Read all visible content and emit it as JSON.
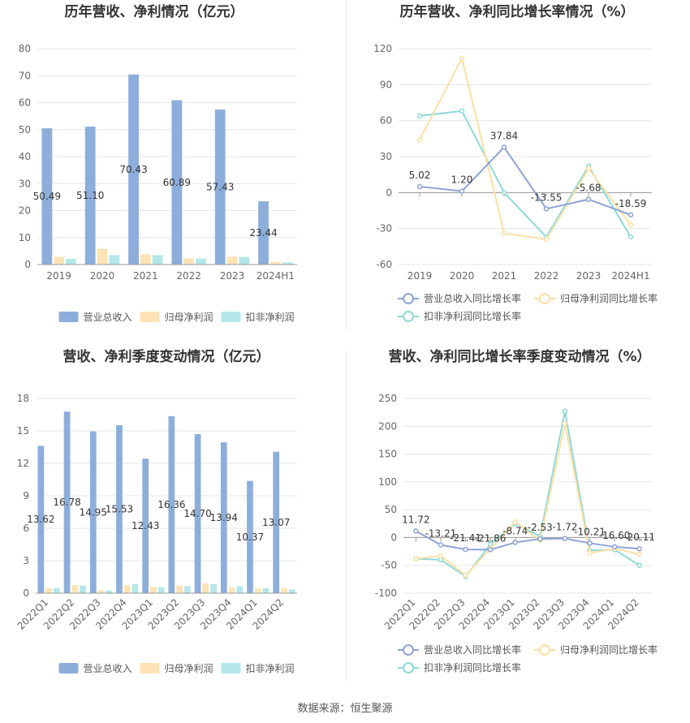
{
  "source": "数据来源：恒生聚源",
  "colors": {
    "revenue": "#8DAEDB",
    "net_profit": "#FDE3B6",
    "deducted_profit": "#B4E7EA",
    "revenue_line": "#8DA3D6",
    "net_profit_line": "#FDDFA4",
    "deducted_line": "#8ED9D8"
  },
  "chart_data": [
    {
      "type": "bar",
      "title": "历年营收、净利情况（亿元）",
      "categories": [
        "2019",
        "2020",
        "2021",
        "2022",
        "2023",
        "2024H1"
      ],
      "ylim": [
        0,
        80
      ],
      "yticks": [
        0,
        10,
        20,
        30,
        40,
        50,
        60,
        70,
        80
      ],
      "legend_position": "bottom",
      "series": [
        {
          "name": "营业总收入",
          "values": [
            50.49,
            51.1,
            70.43,
            60.89,
            57.43,
            23.44
          ],
          "labels": [
            "50.49",
            "51.10",
            "70.43",
            "60.89",
            "57.43",
            "23.44"
          ]
        },
        {
          "name": "归母净利润",
          "values": [
            2.8,
            5.8,
            3.8,
            2.3,
            2.9,
            1.0
          ]
        },
        {
          "name": "扣非净利润",
          "values": [
            2.1,
            3.5,
            3.5,
            2.2,
            2.8,
            0.8
          ]
        }
      ]
    },
    {
      "type": "line",
      "title": "历年营收、净利同比增长率情况（%）",
      "categories": [
        "2019",
        "2020",
        "2021",
        "2022",
        "2023",
        "2024H1"
      ],
      "ylim": [
        -60,
        120
      ],
      "yticks": [
        -60,
        -30,
        0,
        30,
        60,
        90,
        120
      ],
      "legend_position": "bottom",
      "series": [
        {
          "name": "营业总收入同比增长率",
          "values": [
            5.02,
            1.2,
            37.84,
            -13.55,
            -5.68,
            -18.59
          ],
          "labels": [
            "5.02",
            "1.20",
            "37.84",
            "-13.55",
            "-5.68",
            "-18.59"
          ]
        },
        {
          "name": "归母净利润同比增长率",
          "values": [
            44,
            112,
            -34,
            -39,
            20,
            -27
          ]
        },
        {
          "name": "扣非净利润同比增长率",
          "values": [
            64,
            68,
            0,
            -37,
            22,
            -37
          ]
        }
      ]
    },
    {
      "type": "bar",
      "title": "营收、净利季度变动情况（亿元）",
      "categories": [
        "2022Q1",
        "2022Q2",
        "2022Q3",
        "2022Q4",
        "2023Q1",
        "2023Q2",
        "2023Q3",
        "2023Q4",
        "2024Q1",
        "2024Q2"
      ],
      "ylim": [
        0,
        18
      ],
      "yticks": [
        0,
        3,
        6,
        9,
        12,
        15,
        18
      ],
      "legend_position": "bottom",
      "series": [
        {
          "name": "营业总收入",
          "values": [
            13.62,
            16.78,
            14.95,
            15.53,
            12.43,
            16.36,
            14.7,
            13.94,
            10.37,
            13.07
          ],
          "labels": [
            "13.62",
            "16.78",
            "14.95",
            "15.53",
            "12.43",
            "16.36",
            "14.70",
            "13.94",
            "10.37",
            "13.07"
          ]
        },
        {
          "name": "归母净利润",
          "values": [
            0.45,
            0.75,
            0.25,
            0.75,
            0.6,
            0.7,
            0.9,
            0.55,
            0.45,
            0.45
          ]
        },
        {
          "name": "扣非净利润",
          "values": [
            0.45,
            0.7,
            0.25,
            0.85,
            0.55,
            0.65,
            0.85,
            0.65,
            0.45,
            0.35
          ]
        }
      ]
    },
    {
      "type": "line",
      "title": "营收、净利同比增长率季度变动情况（%）",
      "categories": [
        "2022Q1",
        "2022Q2",
        "2022Q3",
        "2022Q4",
        "2023Q1",
        "2023Q2",
        "2023Q3",
        "2023Q4",
        "2024Q1",
        "2024Q2"
      ],
      "ylim": [
        -100,
        250
      ],
      "yticks": [
        -100,
        -50,
        0,
        50,
        100,
        150,
        200,
        250
      ],
      "legend_position": "bottom",
      "series": [
        {
          "name": "营业总收入同比增长率",
          "values": [
            11.72,
            -13.21,
            -21.41,
            -21.86,
            -8.74,
            -2.53,
            -1.72,
            -10.21,
            -16.6,
            -20.11
          ],
          "labels": [
            "11.72",
            "-13.21",
            "-21.41",
            "-21.86",
            "-8.74",
            "-2.53",
            "-1.72",
            "-10.21",
            "-16.60",
            "-20.11"
          ]
        },
        {
          "name": "归母净利润同比增长率",
          "values": [
            -38,
            -33,
            -68,
            -20,
            28,
            -5,
            205,
            -28,
            -20,
            -30
          ]
        },
        {
          "name": "扣非净利润同比增长率",
          "values": [
            -38,
            -40,
            -70,
            -12,
            25,
            2,
            227,
            -23,
            -22,
            -50
          ]
        }
      ]
    }
  ]
}
